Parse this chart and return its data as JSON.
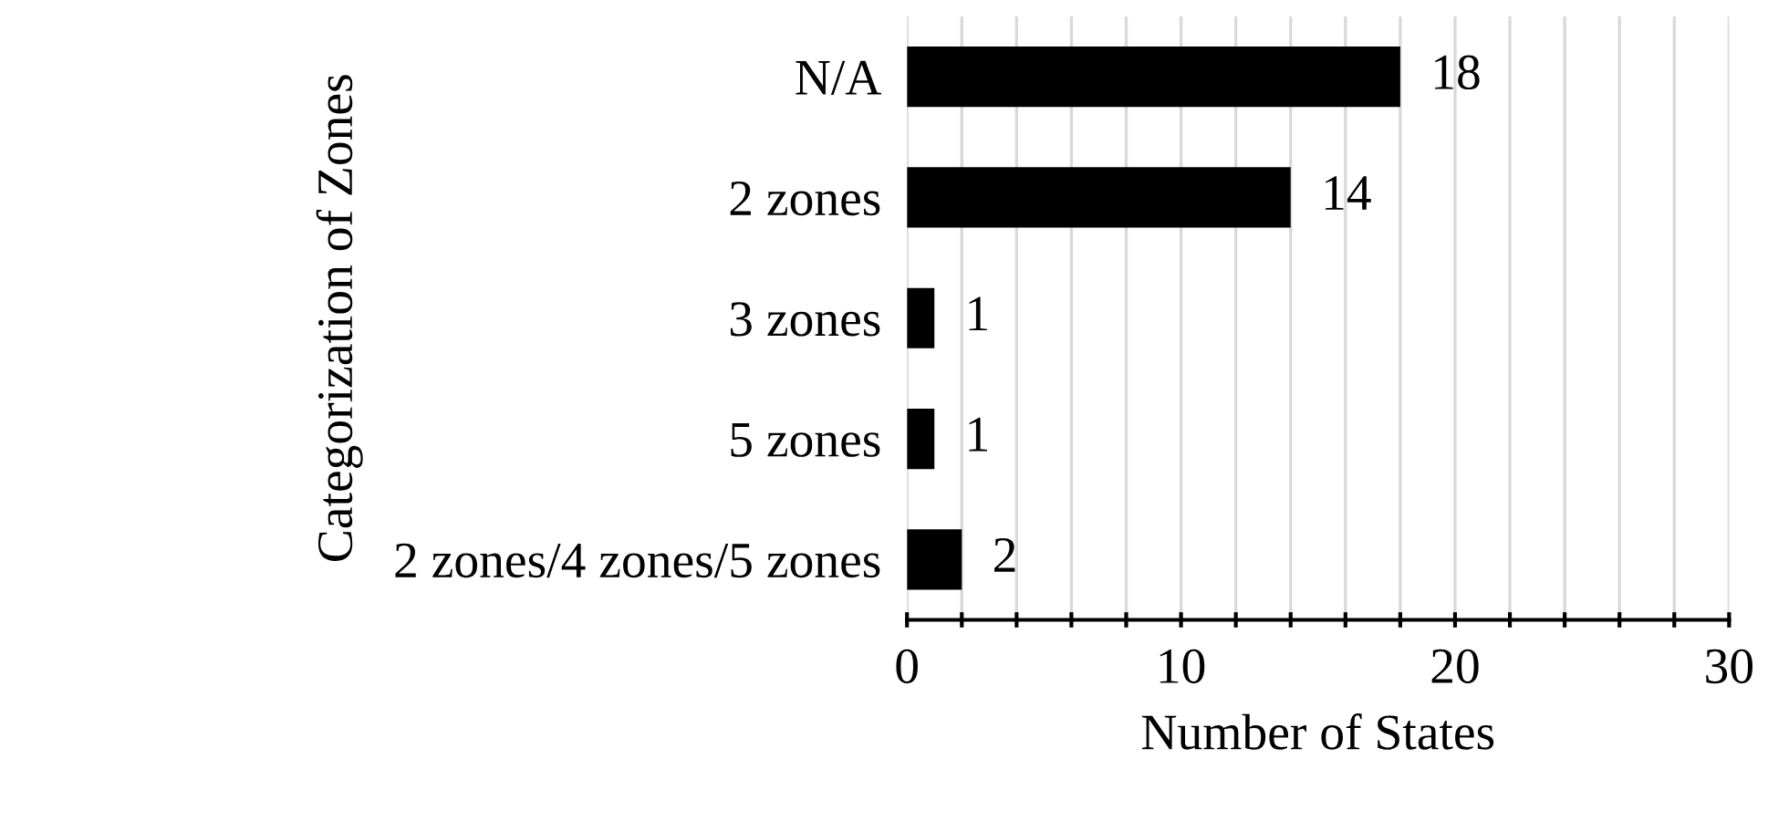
{
  "chart_data": {
    "type": "bar",
    "orientation": "horizontal",
    "categories": [
      "N/A",
      "2 zones",
      "3 zones",
      "5 zones",
      "2 zones/4 zones/5 zones"
    ],
    "values": [
      18,
      14,
      1,
      1,
      2
    ],
    "color": "#000000",
    "xlabel": "Number of States",
    "ylabel": "Categorization of Zones",
    "xlim": [
      0,
      30
    ],
    "xticks": [
      0,
      {
        "value": 2,
        "label": null
      },
      {
        "value": 4,
        "label": null
      },
      {
        "value": 6,
        "label": null
      },
      {
        "value": 8,
        "label": null
      },
      10,
      {
        "value": 12,
        "label": null
      },
      {
        "value": 14,
        "label": null
      },
      {
        "value": 16,
        "label": null
      },
      {
        "value": 18,
        "label": null
      },
      20,
      {
        "value": 22,
        "label": null
      },
      {
        "value": 24,
        "label": null
      },
      {
        "value": 26,
        "label": null
      },
      {
        "value": 28,
        "label": null
      },
      30
    ],
    "grid": "x",
    "data_labels": true
  }
}
